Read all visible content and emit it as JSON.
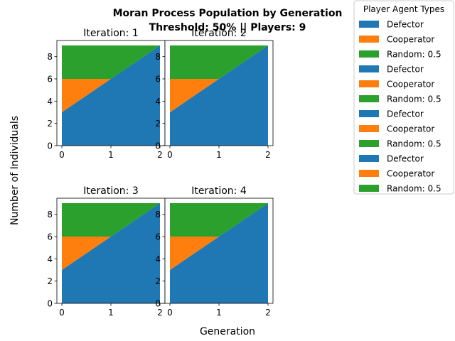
{
  "figure": {
    "title_line1": "Moran Process Population by Generation",
    "title_line2": "Threshold: 50% || Players: 9",
    "xlabel": "Generation",
    "ylabel": "Number of Individuals"
  },
  "legend": {
    "title": "Player Agent Types",
    "placement": "upper-right-outside",
    "entries": [
      {
        "label": "Defector",
        "color": "#1f77b4"
      },
      {
        "label": "Cooperator",
        "color": "#ff7f0e"
      },
      {
        "label": "Random: 0.5",
        "color": "#2ca02c"
      },
      {
        "label": "Defector",
        "color": "#1f77b4"
      },
      {
        "label": "Cooperator",
        "color": "#ff7f0e"
      },
      {
        "label": "Random: 0.5",
        "color": "#2ca02c"
      },
      {
        "label": "Defector",
        "color": "#1f77b4"
      },
      {
        "label": "Cooperator",
        "color": "#ff7f0e"
      },
      {
        "label": "Random: 0.5",
        "color": "#2ca02c"
      },
      {
        "label": "Defector",
        "color": "#1f77b4"
      },
      {
        "label": "Cooperator",
        "color": "#ff7f0e"
      },
      {
        "label": "Random: 0.5",
        "color": "#2ca02c"
      }
    ]
  },
  "chart_data": [
    {
      "type": "area",
      "title": "Iteration: 1",
      "x": [
        0,
        1,
        2
      ],
      "xticks": [
        "0",
        "1",
        "2"
      ],
      "yticks": [
        "0",
        "2",
        "4",
        "6",
        "8"
      ],
      "xlim": [
        0,
        2
      ],
      "ylim": [
        0,
        9.45
      ],
      "stacked": true,
      "series": [
        {
          "name": "Defector",
          "color": "#1f77b4",
          "values": [
            3,
            6,
            9
          ]
        },
        {
          "name": "Cooperator",
          "color": "#ff7f0e",
          "values": [
            3,
            0,
            0
          ]
        },
        {
          "name": "Random: 0.5",
          "color": "#2ca02c",
          "values": [
            3,
            3,
            0
          ]
        }
      ]
    },
    {
      "type": "area",
      "title": "Iteration: 2",
      "x": [
        0,
        1,
        2
      ],
      "xticks": [
        "0",
        "1",
        "2"
      ],
      "yticks": [
        "0",
        "2",
        "4",
        "6",
        "8"
      ],
      "xlim": [
        0,
        2
      ],
      "ylim": [
        0,
        9.45
      ],
      "stacked": true,
      "series": [
        {
          "name": "Defector",
          "color": "#1f77b4",
          "values": [
            3,
            6,
            9
          ]
        },
        {
          "name": "Cooperator",
          "color": "#ff7f0e",
          "values": [
            3,
            0,
            0
          ]
        },
        {
          "name": "Random: 0.5",
          "color": "#2ca02c",
          "values": [
            3,
            3,
            0
          ]
        }
      ]
    },
    {
      "type": "area",
      "title": "Iteration: 3",
      "x": [
        0,
        1,
        2
      ],
      "xticks": [
        "0",
        "1",
        "2"
      ],
      "yticks": [
        "0",
        "2",
        "4",
        "6",
        "8"
      ],
      "xlim": [
        0,
        2
      ],
      "ylim": [
        0,
        9.45
      ],
      "stacked": true,
      "series": [
        {
          "name": "Defector",
          "color": "#1f77b4",
          "values": [
            3,
            6,
            9
          ]
        },
        {
          "name": "Cooperator",
          "color": "#ff7f0e",
          "values": [
            3,
            0,
            0
          ]
        },
        {
          "name": "Random: 0.5",
          "color": "#2ca02c",
          "values": [
            3,
            3,
            0
          ]
        }
      ]
    },
    {
      "type": "area",
      "title": "Iteration: 4",
      "x": [
        0,
        1,
        2
      ],
      "xticks": [
        "0",
        "1",
        "2"
      ],
      "yticks": [
        "0",
        "2",
        "4",
        "6",
        "8"
      ],
      "xlim": [
        0,
        2
      ],
      "ylim": [
        0,
        9.45
      ],
      "stacked": true,
      "series": [
        {
          "name": "Defector",
          "color": "#1f77b4",
          "values": [
            3,
            6,
            9
          ]
        },
        {
          "name": "Cooperator",
          "color": "#ff7f0e",
          "values": [
            3,
            0,
            0
          ]
        },
        {
          "name": "Random: 0.5",
          "color": "#2ca02c",
          "values": [
            3,
            3,
            0
          ]
        }
      ]
    }
  ]
}
